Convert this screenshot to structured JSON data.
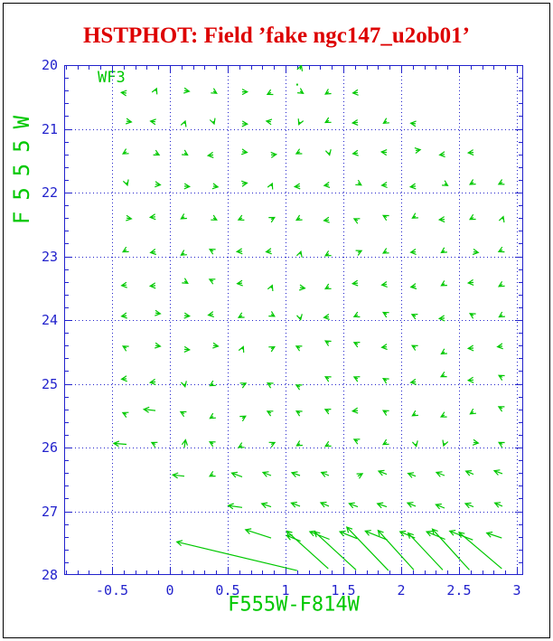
{
  "window": {
    "title": "HSTPHOT: Field ’fake ngc147_u2ob01’"
  },
  "chart_data": {
    "type": "quiver",
    "title": "HSTPHOT: Field ’fake ngc147_u2ob01’",
    "xlabel": "F555W-F814W",
    "ylabel": "F555W",
    "annotation": "WF3",
    "xlim": [
      -0.914,
      3.055
    ],
    "ylim": [
      28,
      20
    ],
    "x_ticks_major": [
      -0.5,
      0,
      0.5,
      1,
      1.5,
      2,
      2.5,
      3
    ],
    "x_tick_labels": [
      "-0.5",
      "0",
      "0.5",
      "1",
      "1.5",
      "2",
      "2.5",
      "3"
    ],
    "y_ticks_major": [
      20,
      21,
      22,
      23,
      24,
      25,
      26,
      27,
      28
    ],
    "y_tick_labels": [
      "20",
      "21",
      "22",
      "23",
      "24",
      "25",
      "26",
      "27",
      "28"
    ],
    "x_minor_step": 0.1,
    "y_minor_step": 0.2,
    "grid": "dotted lines at major ticks",
    "legend": "none",
    "colors": {
      "vectors": "#00c800",
      "frame": "#2222cc",
      "grid": "#2222cc",
      "tick_labels": "#2222cc",
      "axis_labels": "#00c800",
      "title": "#dd0000",
      "border": "#000000"
    },
    "arrows_format": "[color, mag, dcolor, dmag] tail at (color,mag), head at (color+dcolor, mag+dmag)",
    "arrows": [
      [
        1.125,
        20.07,
        0.012,
        -0.065
      ],
      [
        1.095,
        20.3,
        0.006,
        0.006
      ],
      [
        -0.375,
        20.44,
        -0.045,
        -0.01
      ],
      [
        -0.125,
        20.41,
        0.01,
        -0.042
      ],
      [
        0.125,
        20.4,
        0.042,
        0.012
      ],
      [
        0.375,
        20.41,
        0.03,
        0.032
      ],
      [
        0.625,
        20.42,
        0.045,
        0.0
      ],
      [
        0.875,
        20.43,
        -0.032,
        0.03
      ],
      [
        1.125,
        20.41,
        0.028,
        0.034
      ],
      [
        1.375,
        20.42,
        -0.03,
        0.035
      ],
      [
        1.625,
        20.43,
        -0.042,
        0.008
      ],
      [
        -0.375,
        20.88,
        0.042,
        0.012
      ],
      [
        -0.125,
        20.89,
        -0.042,
        -0.01
      ],
      [
        0.125,
        20.92,
        0.008,
        -0.04
      ],
      [
        0.375,
        20.88,
        0.008,
        0.042
      ],
      [
        0.625,
        20.92,
        0.045,
        0.005
      ],
      [
        0.875,
        20.89,
        -0.04,
        -0.012
      ],
      [
        1.125,
        20.89,
        -0.01,
        0.042
      ],
      [
        1.375,
        20.87,
        -0.03,
        0.03
      ],
      [
        1.625,
        20.9,
        -0.045,
        0.008
      ],
      [
        1.875,
        20.88,
        -0.028,
        0.032
      ],
      [
        2.125,
        20.92,
        -0.042,
        -0.008
      ],
      [
        -0.375,
        21.36,
        -0.03,
        0.032
      ],
      [
        -0.125,
        21.38,
        0.032,
        0.03
      ],
      [
        0.125,
        21.38,
        0.028,
        0.032
      ],
      [
        0.375,
        21.41,
        -0.045,
        0.01
      ],
      [
        0.625,
        21.36,
        0.042,
        0.01
      ],
      [
        0.875,
        21.41,
        0.045,
        -0.008
      ],
      [
        1.125,
        21.36,
        -0.032,
        0.03
      ],
      [
        1.375,
        21.37,
        0.006,
        0.042
      ],
      [
        1.625,
        21.38,
        -0.042,
        0.01
      ],
      [
        1.875,
        21.37,
        -0.045,
        -0.008
      ],
      [
        2.125,
        21.34,
        0.04,
        -0.012
      ],
      [
        2.375,
        21.4,
        -0.042,
        0.008
      ],
      [
        2.625,
        21.37,
        -0.045,
        0.006
      ],
      [
        -0.375,
        21.84,
        0.008,
        0.045
      ],
      [
        -0.125,
        21.87,
        0.042,
        0.01
      ],
      [
        0.125,
        21.9,
        0.045,
        0.006
      ],
      [
        0.375,
        21.9,
        0.04,
        0.012
      ],
      [
        0.625,
        21.86,
        0.042,
        -0.01
      ],
      [
        0.875,
        21.9,
        0.01,
        -0.042
      ],
      [
        1.125,
        21.9,
        -0.045,
        0.008
      ],
      [
        1.375,
        21.88,
        -0.04,
        0.01
      ],
      [
        1.625,
        21.85,
        0.03,
        0.032
      ],
      [
        1.875,
        21.88,
        -0.042,
        0.006
      ],
      [
        2.125,
        21.9,
        -0.045,
        0.01
      ],
      [
        2.375,
        21.86,
        0.028,
        0.03
      ],
      [
        2.625,
        21.84,
        -0.03,
        0.032
      ],
      [
        2.875,
        21.84,
        -0.032,
        0.03
      ],
      [
        -0.375,
        22.4,
        0.042,
        0.01
      ],
      [
        -0.125,
        22.38,
        -0.045,
        0.008
      ],
      [
        0.125,
        22.38,
        -0.028,
        0.032
      ],
      [
        0.375,
        22.4,
        0.03,
        0.03
      ],
      [
        0.625,
        22.4,
        -0.032,
        0.028
      ],
      [
        0.875,
        22.42,
        0.03,
        -0.03
      ],
      [
        1.125,
        22.4,
        -0.03,
        0.032
      ],
      [
        1.375,
        22.43,
        -0.042,
        0.01
      ],
      [
        1.625,
        22.44,
        -0.032,
        -0.028
      ],
      [
        1.875,
        22.39,
        -0.03,
        -0.03
      ],
      [
        2.125,
        22.37,
        -0.028,
        0.03
      ],
      [
        2.375,
        22.42,
        -0.045,
        0.006
      ],
      [
        2.625,
        22.39,
        -0.03,
        0.03
      ],
      [
        2.875,
        22.42,
        0.008,
        -0.042
      ],
      [
        -0.375,
        22.9,
        -0.03,
        0.03
      ],
      [
        -0.125,
        22.93,
        -0.042,
        0.012
      ],
      [
        0.125,
        22.95,
        -0.028,
        0.032
      ],
      [
        0.375,
        22.92,
        -0.03,
        -0.03
      ],
      [
        0.625,
        22.92,
        -0.045,
        0.008
      ],
      [
        0.875,
        22.92,
        -0.042,
        0.01
      ],
      [
        1.125,
        22.97,
        0.008,
        -0.045
      ],
      [
        1.375,
        22.96,
        -0.03,
        0.032
      ],
      [
        1.625,
        22.94,
        0.032,
        -0.028
      ],
      [
        1.875,
        22.92,
        -0.03,
        0.03
      ],
      [
        2.125,
        22.93,
        -0.042,
        0.008
      ],
      [
        2.375,
        22.91,
        -0.028,
        0.032
      ],
      [
        2.625,
        22.93,
        0.042,
        0.01
      ],
      [
        2.875,
        22.9,
        -0.032,
        0.028
      ],
      [
        -0.375,
        23.45,
        -0.042,
        0.01
      ],
      [
        -0.125,
        23.46,
        -0.045,
        0.006
      ],
      [
        0.125,
        23.39,
        0.03,
        0.032
      ],
      [
        0.375,
        23.39,
        -0.032,
        -0.028
      ],
      [
        0.625,
        23.42,
        -0.042,
        0.008
      ],
      [
        0.875,
        23.5,
        0.01,
        -0.045
      ],
      [
        1.125,
        23.49,
        0.042,
        0.01
      ],
      [
        1.375,
        23.48,
        -0.03,
        0.03
      ],
      [
        1.625,
        23.42,
        -0.045,
        0.008
      ],
      [
        1.875,
        23.44,
        -0.042,
        0.01
      ],
      [
        2.125,
        23.47,
        -0.04,
        0.012
      ],
      [
        2.375,
        23.43,
        -0.028,
        0.03
      ],
      [
        2.625,
        23.41,
        -0.045,
        0.008
      ],
      [
        2.875,
        23.44,
        -0.03,
        0.032
      ],
      [
        -0.375,
        23.93,
        -0.042,
        0.01
      ],
      [
        -0.125,
        23.89,
        0.042,
        0.01
      ],
      [
        0.125,
        23.93,
        0.045,
        0.008
      ],
      [
        0.375,
        23.91,
        -0.042,
        0.012
      ],
      [
        0.625,
        23.93,
        -0.03,
        0.03
      ],
      [
        0.875,
        23.91,
        0.03,
        0.032
      ],
      [
        1.125,
        23.95,
        0.006,
        0.045
      ],
      [
        1.375,
        23.95,
        -0.042,
        0.01
      ],
      [
        1.625,
        23.92,
        -0.032,
        0.028
      ],
      [
        1.875,
        23.91,
        -0.03,
        -0.03
      ],
      [
        2.125,
        23.94,
        -0.032,
        -0.028
      ],
      [
        2.375,
        23.97,
        -0.045,
        0.008
      ],
      [
        2.625,
        23.93,
        -0.03,
        -0.032
      ],
      [
        2.875,
        23.92,
        -0.028,
        0.032
      ],
      [
        -0.375,
        24.44,
        -0.03,
        -0.03
      ],
      [
        -0.125,
        24.4,
        0.042,
        0.012
      ],
      [
        0.125,
        24.46,
        0.045,
        0.006
      ],
      [
        0.375,
        24.4,
        0.042,
        0.01
      ],
      [
        0.625,
        24.46,
        0.01,
        -0.042
      ],
      [
        0.875,
        24.45,
        0.03,
        -0.03
      ],
      [
        1.125,
        24.44,
        -0.032,
        -0.03
      ],
      [
        1.375,
        24.36,
        -0.03,
        -0.032
      ],
      [
        1.625,
        24.38,
        -0.032,
        -0.028
      ],
      [
        1.875,
        24.42,
        -0.042,
        0.008
      ],
      [
        2.125,
        24.43,
        -0.03,
        -0.03
      ],
      [
        2.375,
        24.5,
        -0.028,
        0.03
      ],
      [
        2.625,
        24.44,
        -0.045,
        0.006
      ],
      [
        2.875,
        24.41,
        -0.042,
        0.01
      ],
      [
        -0.375,
        24.92,
        -0.042,
        0.008
      ],
      [
        -0.125,
        24.97,
        -0.045,
        0.01
      ],
      [
        0.125,
        25.0,
        0.006,
        0.045
      ],
      [
        0.375,
        25.0,
        -0.028,
        0.03
      ],
      [
        0.625,
        25.02,
        0.032,
        -0.03
      ],
      [
        0.875,
        25.02,
        -0.03,
        -0.032
      ],
      [
        1.125,
        25.05,
        -0.032,
        -0.03
      ],
      [
        1.375,
        24.92,
        -0.03,
        -0.03
      ],
      [
        1.625,
        24.92,
        -0.032,
        -0.028
      ],
      [
        1.875,
        24.95,
        -0.03,
        -0.032
      ],
      [
        2.125,
        24.97,
        -0.042,
        0.01
      ],
      [
        2.375,
        24.86,
        -0.03,
        0.028
      ],
      [
        2.625,
        24.94,
        -0.045,
        0.008
      ],
      [
        2.875,
        24.9,
        -0.03,
        -0.03
      ],
      [
        -0.375,
        25.48,
        -0.032,
        -0.028
      ],
      [
        -0.125,
        25.42,
        -0.1,
        -0.02
      ],
      [
        0.125,
        25.47,
        -0.032,
        -0.03
      ],
      [
        0.375,
        25.51,
        -0.028,
        0.032
      ],
      [
        0.625,
        25.54,
        0.03,
        -0.032
      ],
      [
        0.875,
        25.46,
        -0.032,
        -0.03
      ],
      [
        1.125,
        25.46,
        -0.03,
        -0.032
      ],
      [
        1.375,
        25.43,
        -0.032,
        -0.028
      ],
      [
        1.625,
        25.42,
        -0.045,
        0.008
      ],
      [
        1.875,
        25.45,
        -0.03,
        -0.03
      ],
      [
        2.125,
        25.47,
        -0.028,
        0.03
      ],
      [
        2.375,
        25.49,
        -0.03,
        0.028
      ],
      [
        2.625,
        25.44,
        -0.028,
        0.032
      ],
      [
        2.875,
        25.39,
        -0.032,
        -0.03
      ],
      [
        -0.375,
        25.95,
        -0.11,
        -0.015
      ],
      [
        -0.125,
        25.95,
        -0.032,
        -0.028
      ],
      [
        0.125,
        26.0,
        0.01,
        -0.12
      ],
      [
        0.375,
        25.94,
        -0.03,
        -0.03
      ],
      [
        0.625,
        25.97,
        -0.03,
        0.03
      ],
      [
        0.875,
        25.95,
        0.032,
        -0.028
      ],
      [
        1.125,
        25.94,
        -0.028,
        0.032
      ],
      [
        1.375,
        25.95,
        -0.03,
        0.03
      ],
      [
        1.625,
        25.9,
        -0.032,
        -0.028
      ],
      [
        1.875,
        25.92,
        -0.03,
        0.032
      ],
      [
        2.125,
        25.94,
        0.006,
        0.042
      ],
      [
        2.375,
        25.93,
        -0.008,
        0.042
      ],
      [
        2.625,
        25.92,
        0.042,
        0.01
      ],
      [
        2.875,
        25.95,
        -0.03,
        -0.03
      ],
      [
        0.125,
        26.45,
        -0.1,
        -0.02
      ],
      [
        0.375,
        26.42,
        -0.03,
        0.03
      ],
      [
        0.625,
        26.46,
        -0.09,
        -0.06
      ],
      [
        0.875,
        26.44,
        -0.07,
        -0.05
      ],
      [
        1.125,
        26.44,
        -0.07,
        -0.045
      ],
      [
        1.375,
        26.44,
        -0.065,
        -0.05
      ],
      [
        1.625,
        26.45,
        0.04,
        -0.04
      ],
      [
        1.875,
        26.42,
        -0.07,
        -0.05
      ],
      [
        2.125,
        26.45,
        -0.065,
        -0.045
      ],
      [
        2.375,
        26.44,
        -0.07,
        -0.05
      ],
      [
        2.625,
        26.42,
        -0.065,
        -0.05
      ],
      [
        2.875,
        26.41,
        -0.07,
        -0.045
      ],
      [
        0.625,
        26.94,
        -0.12,
        -0.03
      ],
      [
        0.875,
        26.93,
        -0.08,
        -0.05
      ],
      [
        1.125,
        26.92,
        -0.075,
        -0.05
      ],
      [
        1.375,
        26.92,
        -0.07,
        -0.055
      ],
      [
        1.625,
        26.93,
        -0.075,
        -0.05
      ],
      [
        1.875,
        26.93,
        -0.08,
        -0.05
      ],
      [
        2.125,
        26.92,
        -0.07,
        -0.05
      ],
      [
        2.375,
        26.95,
        -0.075,
        -0.055
      ],
      [
        2.625,
        26.93,
        -0.07,
        -0.05
      ],
      [
        2.875,
        26.92,
        -0.065,
        -0.05
      ],
      [
        0.875,
        27.42,
        -0.22,
        -0.13
      ],
      [
        1.13,
        27.47,
        -0.12,
        -0.09
      ],
      [
        1.38,
        27.44,
        -0.17,
        -0.12
      ],
      [
        1.62,
        27.43,
        -0.15,
        -0.11
      ],
      [
        1.88,
        27.45,
        -0.19,
        -0.14
      ],
      [
        2.12,
        27.42,
        -0.13,
        -0.1
      ],
      [
        2.38,
        27.44,
        -0.16,
        -0.12
      ],
      [
        2.62,
        27.45,
        -0.2,
        -0.14
      ],
      [
        2.87,
        27.42,
        -0.13,
        -0.08
      ],
      [
        1.1,
        27.93,
        -1.04,
        -0.45
      ],
      [
        1.37,
        27.9,
        -0.36,
        -0.59
      ],
      [
        1.61,
        27.92,
        -0.36,
        -0.6
      ],
      [
        1.89,
        27.93,
        -0.36,
        -0.68
      ],
      [
        2.11,
        27.92,
        -0.31,
        -0.62
      ],
      [
        2.36,
        27.92,
        -0.3,
        -0.58
      ],
      [
        2.59,
        27.92,
        -0.32,
        -0.64
      ],
      [
        2.87,
        27.9,
        -0.37,
        -0.57
      ]
    ]
  }
}
